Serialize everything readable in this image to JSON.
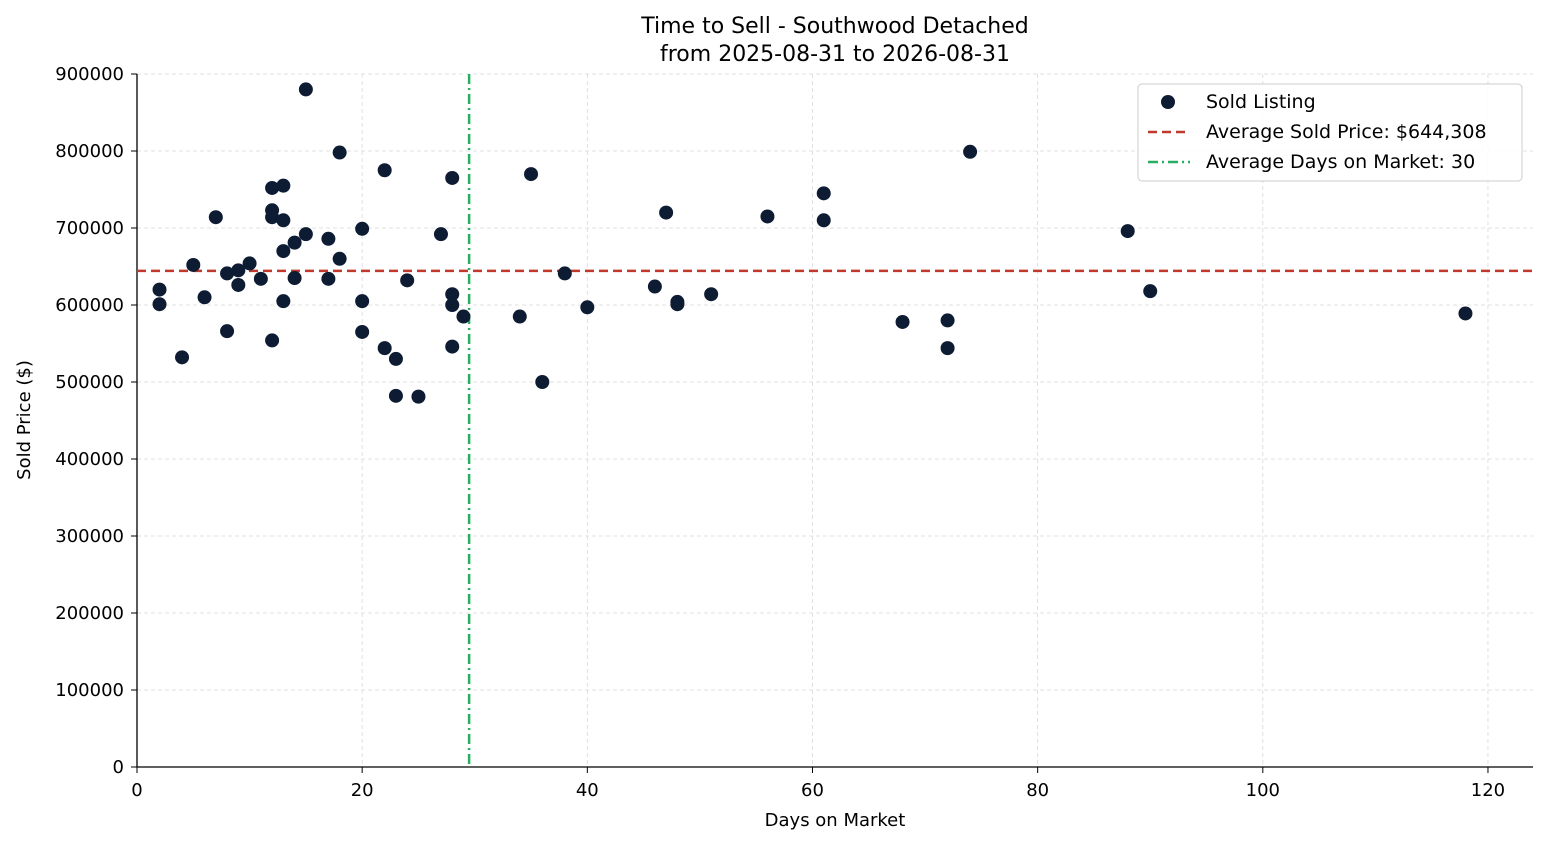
{
  "chart_data": {
    "type": "scatter",
    "title": "Time to Sell - Southwood Detached",
    "subtitle": "from 2025-08-31 to 2026-08-31",
    "xlabel": "Days on Market",
    "ylabel": "Sold Price ($)",
    "xlim": [
      0,
      124
    ],
    "ylim": [
      0,
      900000
    ],
    "x_ticks": [
      0,
      20,
      40,
      60,
      80,
      100,
      120
    ],
    "y_ticks": [
      0,
      100000,
      200000,
      300000,
      400000,
      500000,
      600000,
      700000,
      800000,
      900000
    ],
    "grid": true,
    "legend_position": "top-right",
    "colors": {
      "points": "#0d1b33",
      "avg_price_line": "#c0392b",
      "avg_days_line": "#27ae60"
    },
    "series": [
      {
        "name": "Sold Listing",
        "points": [
          [
            2,
            620000
          ],
          [
            2,
            601000
          ],
          [
            4,
            532000
          ],
          [
            5,
            652000
          ],
          [
            6,
            610000
          ],
          [
            7,
            714000
          ],
          [
            8,
            566000
          ],
          [
            8,
            641000
          ],
          [
            9,
            645000
          ],
          [
            9,
            626000
          ],
          [
            10,
            654000
          ],
          [
            11,
            634000
          ],
          [
            12,
            752000
          ],
          [
            12,
            723000
          ],
          [
            12,
            714000
          ],
          [
            12,
            554000
          ],
          [
            13,
            755000
          ],
          [
            13,
            710000
          ],
          [
            13,
            670000
          ],
          [
            13,
            605000
          ],
          [
            14,
            681000
          ],
          [
            14,
            635000
          ],
          [
            15,
            880000
          ],
          [
            15,
            692000
          ],
          [
            17,
            686000
          ],
          [
            17,
            634000
          ],
          [
            18,
            798000
          ],
          [
            18,
            660000
          ],
          [
            20,
            699000
          ],
          [
            20,
            605000
          ],
          [
            20,
            565000
          ],
          [
            22,
            775000
          ],
          [
            22,
            544000
          ],
          [
            23,
            530000
          ],
          [
            23,
            482000
          ],
          [
            24,
            632000
          ],
          [
            25,
            481000
          ],
          [
            27,
            692000
          ],
          [
            28,
            765000
          ],
          [
            28,
            614000
          ],
          [
            28,
            600000
          ],
          [
            28,
            546000
          ],
          [
            29,
            585000
          ],
          [
            34,
            585000
          ],
          [
            35,
            770000
          ],
          [
            36,
            500000
          ],
          [
            38,
            641000
          ],
          [
            40,
            597000
          ],
          [
            46,
            624000
          ],
          [
            47,
            720000
          ],
          [
            48,
            604000
          ],
          [
            48,
            601000
          ],
          [
            51,
            614000
          ],
          [
            56,
            715000
          ],
          [
            61,
            745000
          ],
          [
            61,
            710000
          ],
          [
            68,
            578000
          ],
          [
            72,
            580000
          ],
          [
            72,
            544000
          ],
          [
            74,
            799000
          ],
          [
            88,
            696000
          ],
          [
            90,
            618000
          ],
          [
            118,
            589000
          ]
        ]
      }
    ],
    "reference_lines": {
      "avg_price": {
        "name": "Average Sold Price: $644,308",
        "value": 644308
      },
      "avg_days": {
        "name": "Average Days on Market: 30",
        "value": 29.5
      }
    }
  }
}
